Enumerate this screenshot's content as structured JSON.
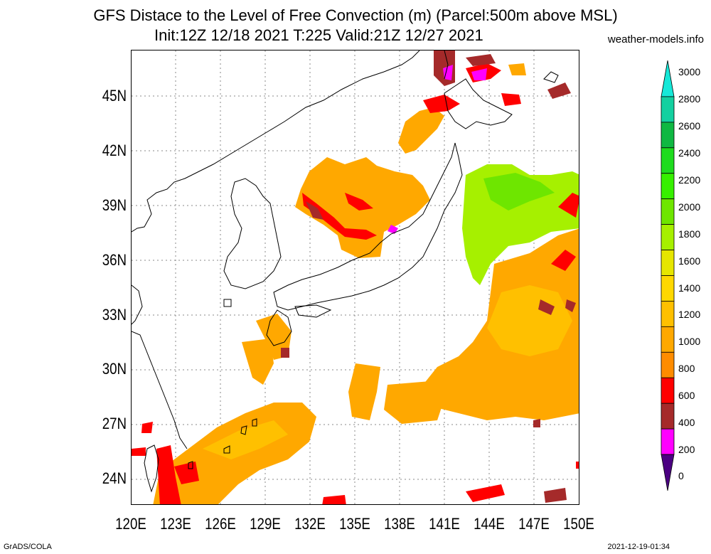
{
  "title": {
    "line1": "GFS Distace to the Level of Free Convection (m) (Parcel:500m above MSL)",
    "line2": "Init:12Z 12/18 2021 T:225 Valid:21Z 12/27 2021"
  },
  "site": "weather-models.info",
  "axes": {
    "lat_labels": [
      "45N",
      "42N",
      "39N",
      "36N",
      "33N",
      "30N",
      "27N",
      "24N"
    ],
    "lon_labels": [
      "120E",
      "123E",
      "126E",
      "129E",
      "132E",
      "135E",
      "138E",
      "141E",
      "144E",
      "147E",
      "150E"
    ]
  },
  "colorbar": {
    "labels": [
      "3000",
      "2800",
      "2600",
      "2400",
      "2200",
      "2000",
      "1800",
      "1600",
      "1400",
      "1200",
      "1000",
      "800",
      "600",
      "400",
      "200",
      "0"
    ],
    "colors": [
      "#16e8d8",
      "#13d0a0",
      "#0fb842",
      "#1edc1e",
      "#36f000",
      "#6ee600",
      "#a6f000",
      "#e6e600",
      "#ffd800",
      "#ffc000",
      "#ffa800",
      "#ff8c00",
      "#ff0000",
      "#a52a2a",
      "#ff00ff",
      "#4b0082"
    ]
  },
  "footer": {
    "left": "GrADS/COLA",
    "right": "2021-12-19-01:34"
  }
}
